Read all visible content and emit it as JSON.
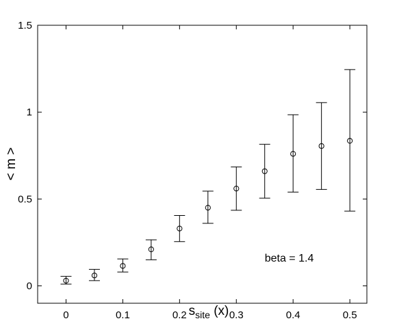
{
  "chart_data": {
    "type": "scatter",
    "title": "",
    "xlabel": {
      "main": "s",
      "sub": "site",
      "suffix": " (x)"
    },
    "ylabel": "< m >",
    "xlim": [
      -0.05,
      0.53
    ],
    "ylim": [
      -0.1,
      1.5
    ],
    "xticks": [
      0,
      0.1,
      0.2,
      0.3,
      0.4,
      0.5
    ],
    "xtick_labels": [
      "0",
      "0.1",
      "0.2",
      "0.3",
      "0.4",
      "0.5"
    ],
    "yticks": [
      0,
      0.5,
      1,
      1.5
    ],
    "ytick_labels": [
      "0",
      "0.5",
      "1",
      "1.5"
    ],
    "grid": false,
    "marker": "open-circle",
    "color": "#000000",
    "series": [
      {
        "x": [
          0,
          0.05,
          0.1,
          0.15,
          0.2,
          0.25,
          0.3,
          0.35,
          0.4,
          0.45,
          0.5
        ],
        "y": [
          0.03,
          0.06,
          0.115,
          0.21,
          0.33,
          0.45,
          0.56,
          0.66,
          0.76,
          0.805,
          0.835
        ],
        "err_low": [
          0.01,
          0.03,
          0.08,
          0.15,
          0.255,
          0.36,
          0.435,
          0.505,
          0.54,
          0.555,
          0.43
        ],
        "err_high": [
          0.055,
          0.095,
          0.155,
          0.265,
          0.405,
          0.545,
          0.685,
          0.815,
          0.985,
          1.055,
          1.245
        ]
      }
    ],
    "annotations": [
      {
        "text": "beta = 1.4",
        "x": 0.35,
        "y": 0.14
      }
    ]
  }
}
